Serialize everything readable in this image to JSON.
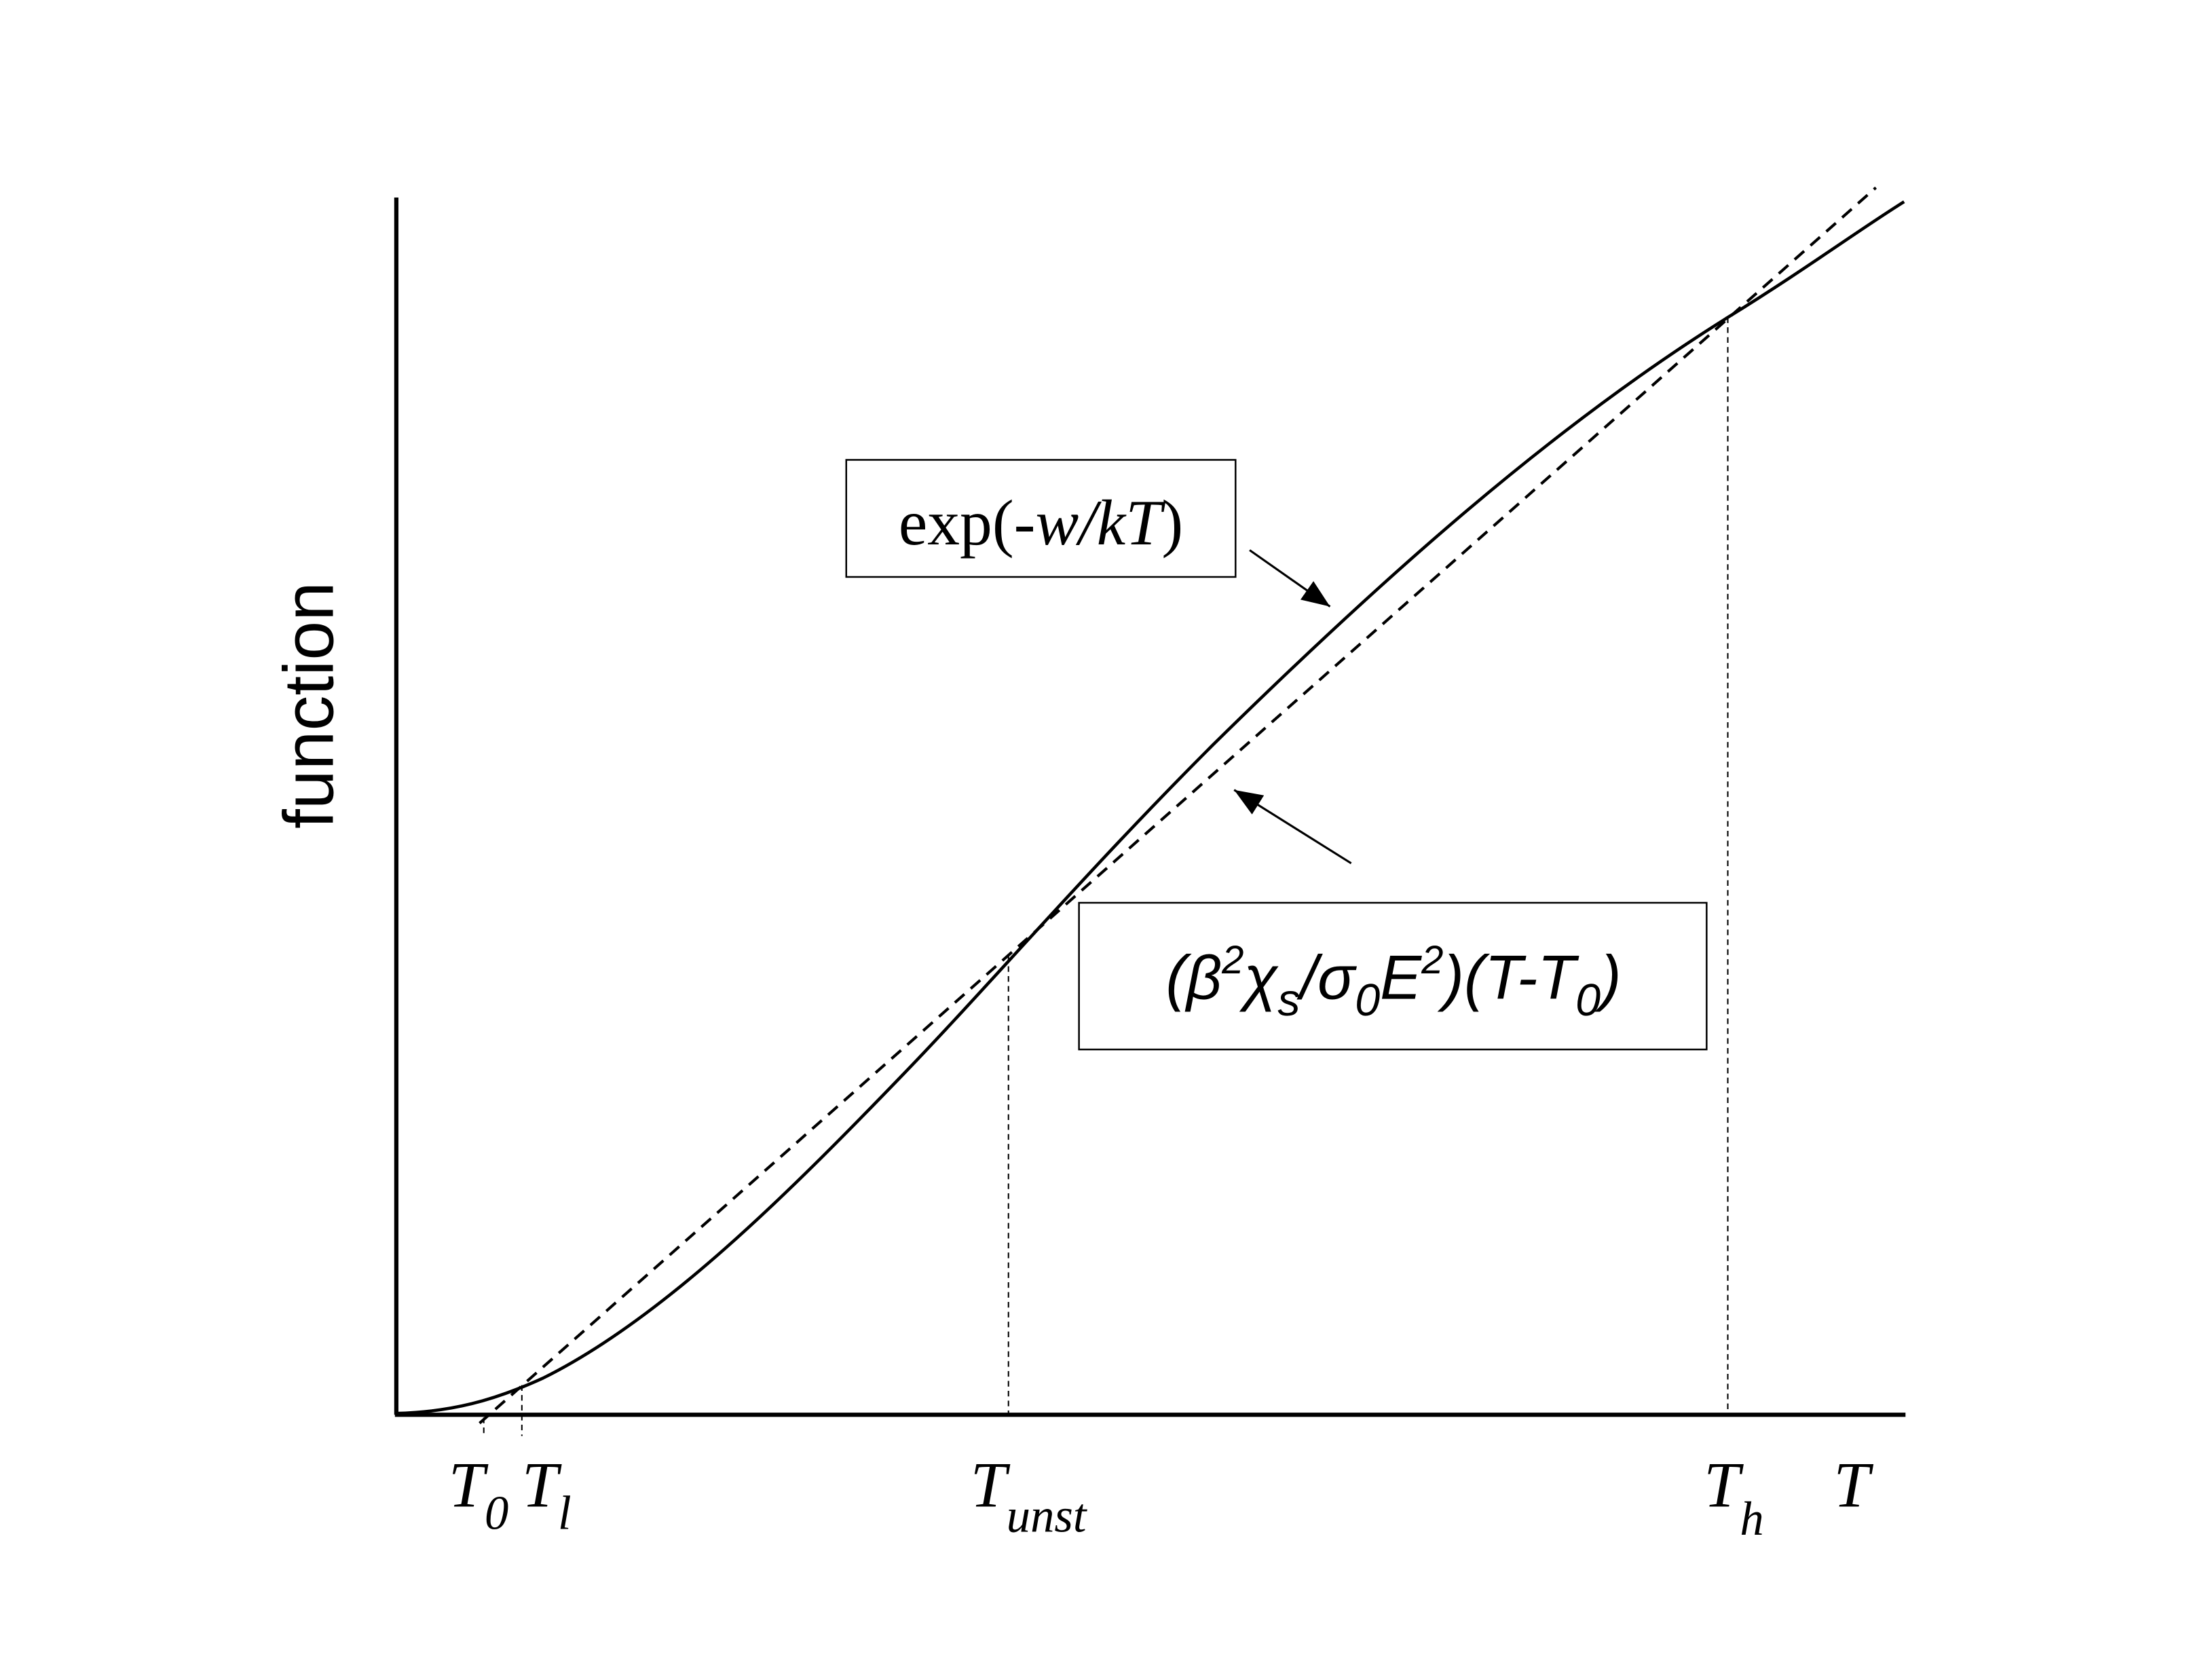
{
  "y_axis_label": "function",
  "annotations": [
    {
      "parts": [
        "exp(-",
        "w/kT",
        ")"
      ]
    },
    {
      "parts": [
        "(β",
        "2",
        "χ",
        "s",
        "/σ",
        "0",
        "E",
        "2",
        ")(T-T",
        "0",
        ")"
      ]
    }
  ],
  "x_labels": [
    {
      "main": "T",
      "sub": "0"
    },
    {
      "main": "T",
      "sub": "l"
    },
    {
      "main": "T",
      "sub": "unst"
    },
    {
      "main": "T",
      "sub": "h"
    },
    {
      "main": "T"
    }
  ]
}
